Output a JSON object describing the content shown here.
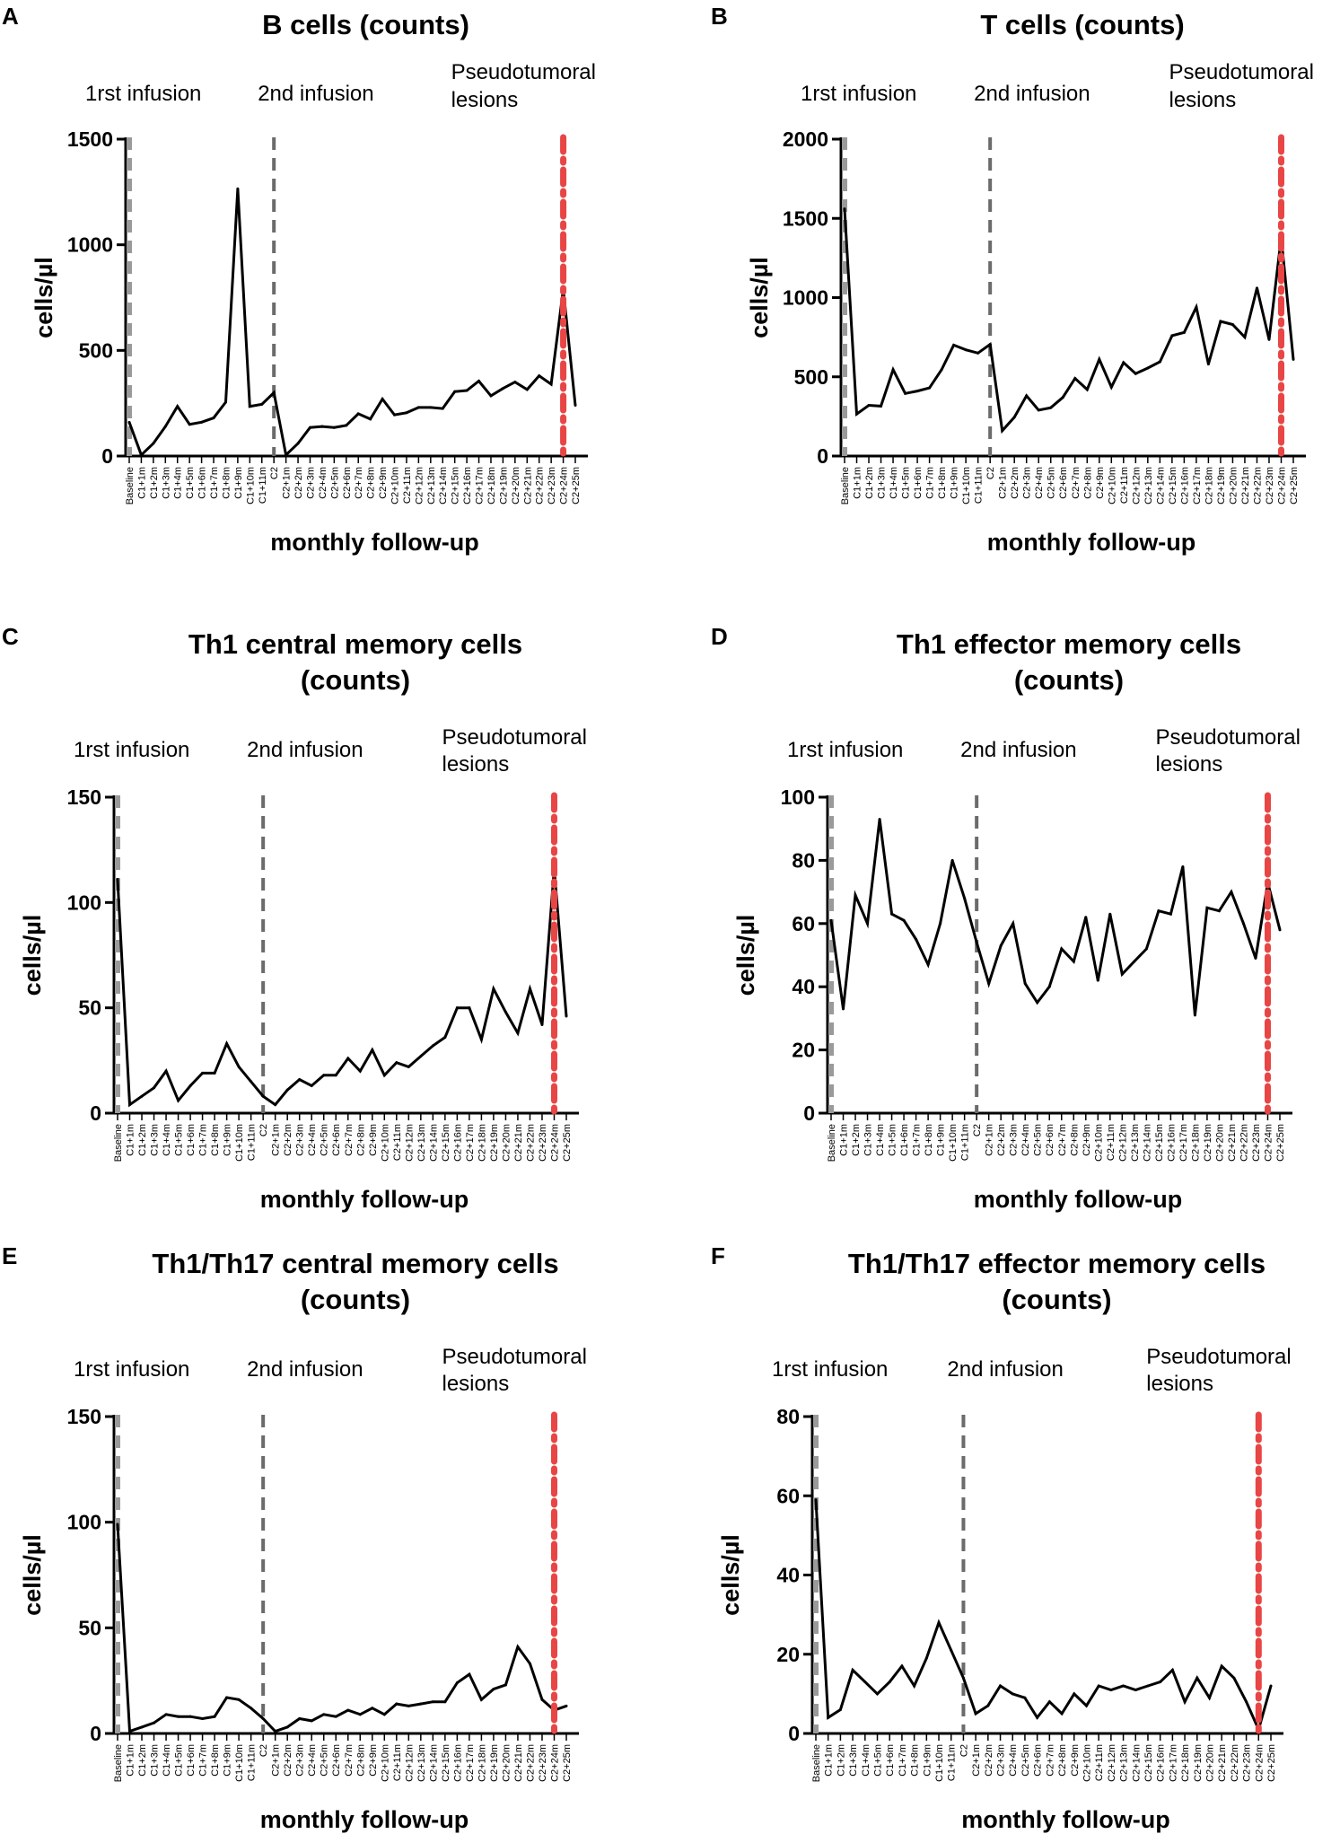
{
  "figure": {
    "x_label": "monthly follow-up",
    "y_label": "cells/µl",
    "annotations": [
      "1rst infusion",
      "2nd infusion",
      "Pseudotumoral",
      "lesions"
    ]
  },
  "colors": {
    "line": "#000000",
    "infusion_marker": "#6b6b6b",
    "lesion_marker": "#e84545"
  },
  "chart_data": [
    {
      "panel": "A",
      "type": "line",
      "title_lines": [
        "B cells (counts)"
      ],
      "xlabel": "monthly follow-up",
      "ylabel": "cells/µl",
      "ylim": [
        0,
        1500
      ],
      "yticks": [
        0,
        500,
        1000,
        1500
      ],
      "categories": [
        "Baseline",
        "C1+1m",
        "C1+2m",
        "C1+3m",
        "C1+4m",
        "C1+5m",
        "C1+6m",
        "C1+7m",
        "C1+8m",
        "C1+9m",
        "C1+10m",
        "C1+11m",
        "C2",
        "C2+1m",
        "C2+2m",
        "C2+3m",
        "C2+4m",
        "C2+5m",
        "C2+6m",
        "C2+7m",
        "C2+8m",
        "C2+9m",
        "C2+10m",
        "C2+11m",
        "C2+12m",
        "C2+13m",
        "C2+14m",
        "C2+15m",
        "C2+16m",
        "C2+17m",
        "C2+18m",
        "C2+19m",
        "C2+20m",
        "C2+21m",
        "C2+22m",
        "C2+23m",
        "C2+24m",
        "C2+25m"
      ],
      "values": [
        160,
        5,
        60,
        140,
        235,
        150,
        160,
        180,
        255,
        1265,
        235,
        245,
        300,
        5,
        60,
        135,
        140,
        135,
        145,
        200,
        175,
        270,
        195,
        205,
        230,
        230,
        225,
        305,
        310,
        355,
        285,
        320,
        350,
        315,
        380,
        340,
        790,
        240
      ],
      "infusion_markers": [
        "Baseline",
        "C2"
      ],
      "lesion_marker": "C2+24m"
    },
    {
      "panel": "B",
      "type": "line",
      "title_lines": [
        "T cells (counts)"
      ],
      "xlabel": "monthly follow-up",
      "ylabel": "cells/µl",
      "ylim": [
        0,
        2000
      ],
      "yticks": [
        0,
        500,
        1000,
        1500,
        2000
      ],
      "categories": [
        "Baseline",
        "C1+1m",
        "C1+2m",
        "C1+3m",
        "C1+4m",
        "C1+5m",
        "C1+6m",
        "C1+7m",
        "C1+8m",
        "C1+9m",
        "C1+10m",
        "C1+11m",
        "C2",
        "C2+1m",
        "C2+2m",
        "C2+3m",
        "C2+4m",
        "C2+5m",
        "C2+6m",
        "C2+7m",
        "C2+8m",
        "C2+9m",
        "C2+10m",
        "C2+11m",
        "C2+12m",
        "C2+13m",
        "C2+14m",
        "C2+15m",
        "C2+16m",
        "C2+17m",
        "C2+18m",
        "C2+19m",
        "C2+20m",
        "C2+21m",
        "C2+22m",
        "C2+23m",
        "C2+24m",
        "C2+25m"
      ],
      "values": [
        1560,
        265,
        320,
        315,
        545,
        395,
        410,
        430,
        545,
        700,
        670,
        650,
        705,
        160,
        245,
        380,
        290,
        305,
        370,
        490,
        420,
        610,
        435,
        590,
        520,
        555,
        595,
        760,
        780,
        940,
        580,
        850,
        830,
        750,
        1060,
        735,
        1380,
        610
      ],
      "infusion_markers": [
        "Baseline",
        "C2"
      ],
      "lesion_marker": "C2+24m"
    },
    {
      "panel": "C",
      "type": "line",
      "title_lines": [
        "Th1 central memory cells",
        "(counts)"
      ],
      "xlabel": "monthly follow-up",
      "ylabel": "cells/µl",
      "ylim": [
        0,
        150
      ],
      "yticks": [
        0,
        50,
        100,
        150
      ],
      "categories": [
        "Baseline",
        "C1+1m",
        "C1+2m",
        "C1+3m",
        "C1+4m",
        "C1+5m",
        "C1+6m",
        "C1+7m",
        "C1+8m",
        "C1+9m",
        "C1+10m",
        "C1+11m",
        "C2",
        "C2+1m",
        "C2+2m",
        "C2+3m",
        "C2+4m",
        "C2+5m",
        "C2+6m",
        "C2+7m",
        "C2+8m",
        "C2+9m",
        "C2+10m",
        "C2+11m",
        "C2+12m",
        "C2+13m",
        "C2+14m",
        "C2+15m",
        "C2+16m",
        "C2+17m",
        "C2+18m",
        "C2+19m",
        "C2+20m",
        "C2+21m",
        "C2+22m",
        "C2+23m",
        "C2+24m",
        "C2+25m"
      ],
      "values": [
        111,
        4,
        8,
        12,
        20,
        6,
        13,
        19,
        19,
        33,
        22,
        15,
        8,
        4,
        11,
        16,
        13,
        18,
        18,
        26,
        20,
        30,
        18,
        24,
        22,
        27,
        32,
        36,
        50,
        50,
        35,
        59,
        48,
        38,
        59,
        42,
        116,
        46
      ],
      "infusion_markers": [
        "Baseline",
        "C2"
      ],
      "lesion_marker": "C2+24m"
    },
    {
      "panel": "D",
      "type": "line",
      "title_lines": [
        "Th1 effector memory cells",
        "(counts)"
      ],
      "xlabel": "monthly follow-up",
      "ylabel": "cells/µl",
      "ylim": [
        0,
        100
      ],
      "yticks": [
        0,
        20,
        40,
        60,
        80,
        100
      ],
      "categories": [
        "Baseline",
        "C1+1m",
        "C1+2m",
        "C1+3m",
        "C1+4m",
        "C1+5m",
        "C1+6m",
        "C1+7m",
        "C1+8m",
        "C1+9m",
        "C1+10m",
        "C1+11m",
        "C2",
        "C2+1m",
        "C2+2m",
        "C2+3m",
        "C2+4m",
        "C2+5m",
        "C2+6m",
        "C2+7m",
        "C2+8m",
        "C2+9m",
        "C2+10m",
        "C2+11m",
        "C2+12m",
        "C2+13m",
        "C2+14m",
        "C2+15m",
        "C2+16m",
        "C2+17m",
        "C2+18m",
        "C2+19m",
        "C2+20m",
        "C2+21m",
        "C2+22m",
        "C2+23m",
        "C2+24m",
        "C2+25m"
      ],
      "values": [
        61,
        33,
        69,
        60,
        93,
        63,
        61,
        55,
        47,
        60,
        80,
        68,
        54,
        41,
        53,
        60,
        41,
        35,
        40,
        52,
        48,
        62,
        42,
        63,
        44,
        48,
        52,
        64,
        63,
        78,
        31,
        65,
        64,
        70,
        60,
        49,
        73,
        58
      ],
      "infusion_markers": [
        "Baseline",
        "C2"
      ],
      "lesion_marker": "C2+24m"
    },
    {
      "panel": "E",
      "type": "line",
      "title_lines": [
        "Th1/Th17 central memory cells",
        "(counts)"
      ],
      "xlabel": "monthly follow-up",
      "ylabel": "cells/µl",
      "ylim": [
        0,
        150
      ],
      "yticks": [
        0,
        50,
        100,
        150
      ],
      "categories": [
        "Baseline",
        "C1+1m",
        "C1+2m",
        "C1+3m",
        "C1+4m",
        "C1+5m",
        "C1+6m",
        "C1+7m",
        "C1+8m",
        "C1+9m",
        "C1+10m",
        "C1+11m",
        "C2",
        "C2+1m",
        "C2+2m",
        "C2+3m",
        "C2+4m",
        "C2+5m",
        "C2+6m",
        "C2+7m",
        "C2+8m",
        "C2+9m",
        "C2+10m",
        "C2+11m",
        "C2+12m",
        "C2+13m",
        "C2+14m",
        "C2+15m",
        "C2+16m",
        "C2+17m",
        "C2+18m",
        "C2+19m",
        "C2+20m",
        "C2+21m",
        "C2+22m",
        "C2+23m",
        "C2+24m",
        "C2+25m"
      ],
      "values": [
        99,
        1,
        3,
        5,
        9,
        8,
        8,
        7,
        8,
        17,
        16,
        12,
        7,
        1,
        3,
        7,
        6,
        9,
        8,
        11,
        9,
        12,
        9,
        14,
        13,
        14,
        15,
        15,
        24,
        28,
        16,
        21,
        23,
        41,
        33,
        16,
        11,
        13
      ],
      "infusion_markers": [
        "Baseline",
        "C2"
      ],
      "lesion_marker": "C2+24m"
    },
    {
      "panel": "F",
      "type": "line",
      "title_lines": [
        "Th1/Th17 effector memory cells",
        "(counts)"
      ],
      "xlabel": "monthly follow-up",
      "ylabel": "cells/µl",
      "ylim": [
        0,
        80
      ],
      "yticks": [
        0,
        20,
        40,
        60,
        80
      ],
      "categories": [
        "Baseline",
        "C1+1m",
        "C1+2m",
        "C1+3m",
        "C1+4m",
        "C1+5m",
        "C1+6m",
        "C1+7m",
        "C1+8m",
        "C1+9m",
        "C1+10m",
        "C1+11m",
        "C2",
        "C2+1m",
        "C2+2m",
        "C2+3m",
        "C2+4m",
        "C2+5m",
        "C2+6m",
        "C2+7m",
        "C2+8m",
        "C2+9m",
        "C2+10m",
        "C2+11m",
        "C2+12m",
        "C2+13m",
        "C2+14m",
        "C2+15m",
        "C2+16m",
        "C2+17m",
        "C2+18m",
        "C2+19m",
        "C2+20m",
        "C2+21m",
        "C2+22m",
        "C2+23m",
        "C2+24m",
        "C2+25m"
      ],
      "values": [
        59,
        4,
        6,
        16,
        13,
        10,
        13,
        17,
        12,
        19,
        28,
        21,
        14,
        5,
        7,
        12,
        10,
        9,
        4,
        8,
        5,
        10,
        7,
        12,
        11,
        12,
        11,
        12,
        13,
        16,
        8,
        14,
        9,
        17,
        14,
        8,
        1,
        12
      ],
      "infusion_markers": [
        "Baseline",
        "C2"
      ],
      "lesion_marker": "C2+24m"
    }
  ]
}
